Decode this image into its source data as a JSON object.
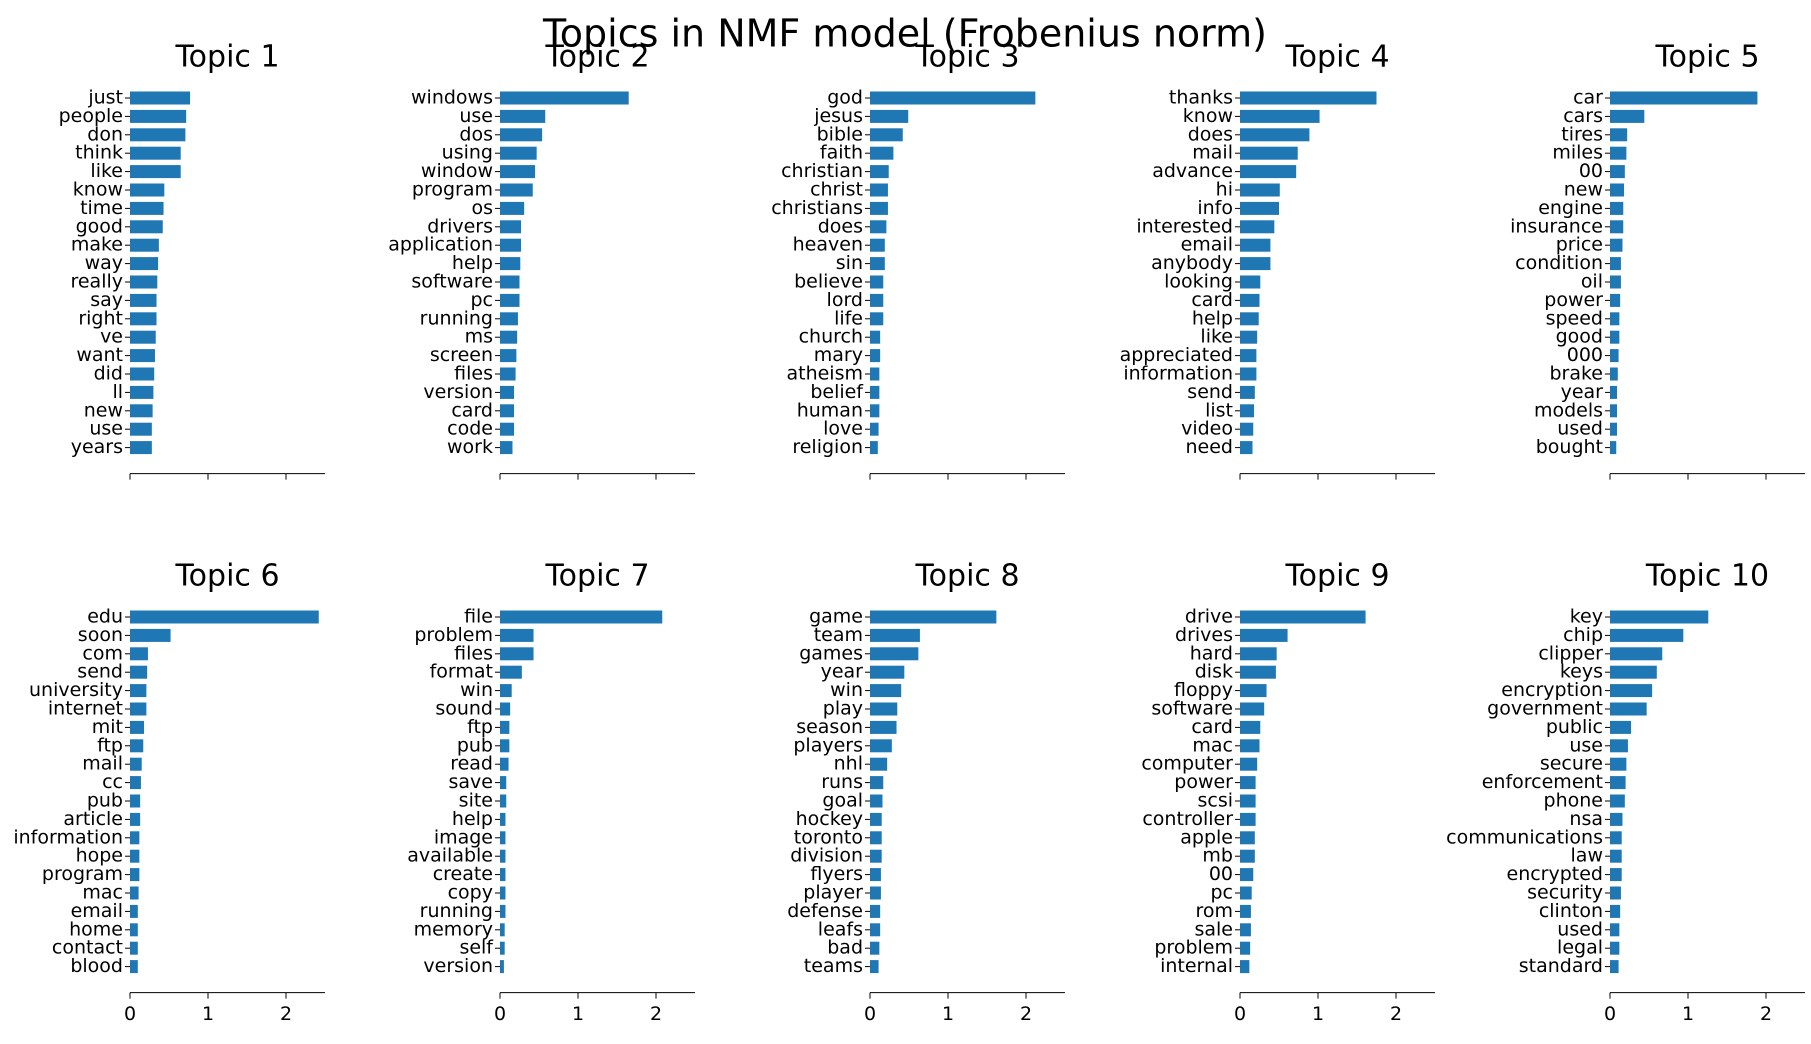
{
  "figure": {
    "title": "Topics in NMF model (Frobenius norm)",
    "bar_color": "#1f77b4"
  },
  "chart_data": [
    {
      "type": "bar",
      "orientation": "horizontal",
      "title": "Topic 1",
      "xlim": [
        0,
        2.5
      ],
      "xticks": [
        0,
        1,
        2
      ],
      "xtick_labels_shown": false,
      "categories": [
        "just",
        "people",
        "don",
        "think",
        "like",
        "know",
        "time",
        "good",
        "make",
        "way",
        "really",
        "say",
        "right",
        "ve",
        "want",
        "did",
        "ll",
        "new",
        "use",
        "years"
      ],
      "values": [
        0.77,
        0.72,
        0.71,
        0.65,
        0.65,
        0.44,
        0.43,
        0.42,
        0.37,
        0.36,
        0.35,
        0.34,
        0.34,
        0.33,
        0.32,
        0.31,
        0.3,
        0.29,
        0.28,
        0.28
      ]
    },
    {
      "type": "bar",
      "orientation": "horizontal",
      "title": "Topic 2",
      "xlim": [
        0,
        2.5
      ],
      "xticks": [
        0,
        1,
        2
      ],
      "xtick_labels_shown": false,
      "categories": [
        "windows",
        "use",
        "dos",
        "using",
        "window",
        "program",
        "os",
        "drivers",
        "application",
        "help",
        "software",
        "pc",
        "running",
        "ms",
        "screen",
        "files",
        "version",
        "card",
        "code",
        "work"
      ],
      "values": [
        1.65,
        0.58,
        0.54,
        0.47,
        0.45,
        0.42,
        0.31,
        0.27,
        0.27,
        0.26,
        0.25,
        0.25,
        0.23,
        0.22,
        0.21,
        0.2,
        0.18,
        0.18,
        0.18,
        0.16
      ]
    },
    {
      "type": "bar",
      "orientation": "horizontal",
      "title": "Topic 3",
      "xlim": [
        0,
        2.5
      ],
      "xticks": [
        0,
        1,
        2
      ],
      "xtick_labels_shown": false,
      "categories": [
        "god",
        "jesus",
        "bible",
        "faith",
        "christian",
        "christ",
        "christians",
        "does",
        "heaven",
        "sin",
        "believe",
        "lord",
        "life",
        "church",
        "mary",
        "atheism",
        "belief",
        "human",
        "love",
        "religion"
      ],
      "values": [
        2.12,
        0.49,
        0.42,
        0.3,
        0.24,
        0.23,
        0.23,
        0.21,
        0.19,
        0.19,
        0.17,
        0.17,
        0.17,
        0.13,
        0.13,
        0.12,
        0.12,
        0.12,
        0.11,
        0.1
      ]
    },
    {
      "type": "bar",
      "orientation": "horizontal",
      "title": "Topic 4",
      "xlim": [
        0,
        2.5
      ],
      "xticks": [
        0,
        1,
        2
      ],
      "xtick_labels_shown": false,
      "categories": [
        "thanks",
        "know",
        "does",
        "mail",
        "advance",
        "hi",
        "info",
        "interested",
        "email",
        "anybody",
        "looking",
        "card",
        "help",
        "like",
        "appreciated",
        "information",
        "send",
        "list",
        "video",
        "need"
      ],
      "values": [
        1.75,
        1.02,
        0.89,
        0.74,
        0.72,
        0.51,
        0.5,
        0.44,
        0.39,
        0.39,
        0.26,
        0.25,
        0.24,
        0.22,
        0.21,
        0.21,
        0.19,
        0.18,
        0.17,
        0.16
      ]
    },
    {
      "type": "bar",
      "orientation": "horizontal",
      "title": "Topic 5",
      "xlim": [
        0,
        2.5
      ],
      "xticks": [
        0,
        1,
        2
      ],
      "xtick_labels_shown": false,
      "categories": [
        "car",
        "cars",
        "tires",
        "miles",
        "00",
        "new",
        "engine",
        "insurance",
        "price",
        "condition",
        "oil",
        "power",
        "speed",
        "good",
        "000",
        "brake",
        "year",
        "models",
        "used",
        "bought"
      ],
      "values": [
        1.89,
        0.44,
        0.22,
        0.21,
        0.19,
        0.18,
        0.17,
        0.17,
        0.16,
        0.14,
        0.14,
        0.13,
        0.12,
        0.12,
        0.11,
        0.1,
        0.09,
        0.09,
        0.09,
        0.08
      ]
    },
    {
      "type": "bar",
      "orientation": "horizontal",
      "title": "Topic 6",
      "xlim": [
        0,
        2.5
      ],
      "xticks": [
        0,
        1,
        2
      ],
      "xtick_labels_shown": true,
      "categories": [
        "edu",
        "soon",
        "com",
        "send",
        "university",
        "internet",
        "mit",
        "ftp",
        "mail",
        "cc",
        "pub",
        "article",
        "information",
        "hope",
        "program",
        "mac",
        "email",
        "home",
        "contact",
        "blood"
      ],
      "values": [
        2.42,
        0.52,
        0.23,
        0.22,
        0.21,
        0.21,
        0.18,
        0.17,
        0.15,
        0.14,
        0.13,
        0.13,
        0.12,
        0.12,
        0.12,
        0.11,
        0.1,
        0.1,
        0.1,
        0.1
      ]
    },
    {
      "type": "bar",
      "orientation": "horizontal",
      "title": "Topic 7",
      "xlim": [
        0,
        2.5
      ],
      "xticks": [
        0,
        1,
        2
      ],
      "xtick_labels_shown": true,
      "categories": [
        "file",
        "problem",
        "files",
        "format",
        "win",
        "sound",
        "ftp",
        "pub",
        "read",
        "save",
        "site",
        "help",
        "image",
        "available",
        "create",
        "copy",
        "running",
        "memory",
        "self",
        "version"
      ],
      "values": [
        2.08,
        0.43,
        0.43,
        0.28,
        0.15,
        0.13,
        0.12,
        0.12,
        0.11,
        0.08,
        0.08,
        0.07,
        0.07,
        0.07,
        0.07,
        0.07,
        0.07,
        0.06,
        0.06,
        0.05
      ]
    },
    {
      "type": "bar",
      "orientation": "horizontal",
      "title": "Topic 8",
      "xlim": [
        0,
        2.5
      ],
      "xticks": [
        0,
        1,
        2
      ],
      "xtick_labels_shown": true,
      "categories": [
        "game",
        "team",
        "games",
        "year",
        "win",
        "play",
        "season",
        "players",
        "nhl",
        "runs",
        "goal",
        "hockey",
        "toronto",
        "division",
        "flyers",
        "player",
        "defense",
        "leafs",
        "bad",
        "teams"
      ],
      "values": [
        1.62,
        0.64,
        0.62,
        0.44,
        0.4,
        0.35,
        0.34,
        0.28,
        0.22,
        0.17,
        0.16,
        0.15,
        0.15,
        0.15,
        0.14,
        0.14,
        0.13,
        0.13,
        0.12,
        0.11
      ]
    },
    {
      "type": "bar",
      "orientation": "horizontal",
      "title": "Topic 9",
      "xlim": [
        0,
        2.5
      ],
      "xticks": [
        0,
        1,
        2
      ],
      "xtick_labels_shown": true,
      "categories": [
        "drive",
        "drives",
        "hard",
        "disk",
        "floppy",
        "software",
        "card",
        "mac",
        "computer",
        "power",
        "scsi",
        "controller",
        "apple",
        "mb",
        "00",
        "pc",
        "rom",
        "sale",
        "problem",
        "internal"
      ],
      "values": [
        1.61,
        0.61,
        0.47,
        0.46,
        0.34,
        0.31,
        0.26,
        0.25,
        0.22,
        0.2,
        0.2,
        0.2,
        0.19,
        0.19,
        0.17,
        0.15,
        0.14,
        0.14,
        0.13,
        0.12
      ]
    },
    {
      "type": "bar",
      "orientation": "horizontal",
      "title": "Topic 10",
      "xlim": [
        0,
        2.5
      ],
      "xticks": [
        0,
        1,
        2
      ],
      "xtick_labels_shown": true,
      "categories": [
        "key",
        "chip",
        "clipper",
        "keys",
        "encryption",
        "government",
        "public",
        "use",
        "secure",
        "enforcement",
        "phone",
        "nsa",
        "communications",
        "law",
        "encrypted",
        "security",
        "clinton",
        "used",
        "legal",
        "standard"
      ],
      "values": [
        1.26,
        0.94,
        0.67,
        0.6,
        0.54,
        0.47,
        0.27,
        0.23,
        0.21,
        0.2,
        0.19,
        0.16,
        0.15,
        0.15,
        0.15,
        0.14,
        0.13,
        0.12,
        0.12,
        0.11
      ]
    }
  ]
}
